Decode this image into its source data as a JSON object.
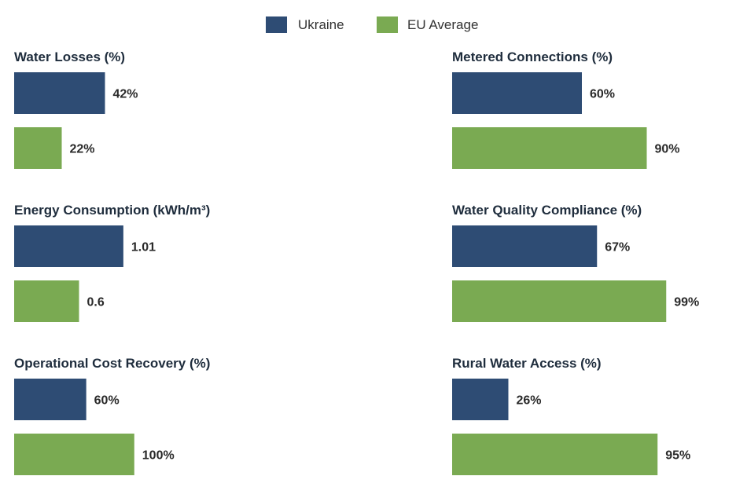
{
  "chart_data": {
    "type": "bar",
    "orientation": "horizontal",
    "legend": {
      "placement": "top-center",
      "items": [
        {
          "name": "Ukraine",
          "color": "#2e4c74"
        },
        {
          "name": "EU Average",
          "color": "#7aaa52"
        }
      ]
    },
    "series_names": [
      "Ukraine",
      "EU Average"
    ],
    "panels": [
      {
        "title": "Water Losses (%)",
        "values": [
          42,
          22
        ],
        "labels": [
          "42%",
          "22%"
        ],
        "xlim": [
          0,
          100
        ]
      },
      {
        "title": "Metered Connections (%)",
        "values": [
          60,
          90
        ],
        "labels": [
          "60%",
          "90%"
        ],
        "xlim": [
          0,
          100
        ]
      },
      {
        "title": "Energy Consumption (kWh/m³)",
        "values": [
          1.01,
          0.6
        ],
        "labels": [
          "1.01",
          "0.6"
        ],
        "xlim": [
          0,
          2
        ]
      },
      {
        "title": "Water Quality Compliance (%)",
        "values": [
          67,
          99
        ],
        "labels": [
          "67%",
          "99%"
        ],
        "xlim": [
          0,
          100
        ]
      },
      {
        "title": "Operational Cost Recovery (%)",
        "values": [
          60,
          100
        ],
        "labels": [
          "60%",
          "100%"
        ],
        "xlim": [
          0,
          180
        ]
      },
      {
        "title": "Rural Water Access (%)",
        "values": [
          26,
          95
        ],
        "labels": [
          "26%",
          "95%"
        ],
        "xlim": [
          0,
          100
        ]
      }
    ]
  }
}
